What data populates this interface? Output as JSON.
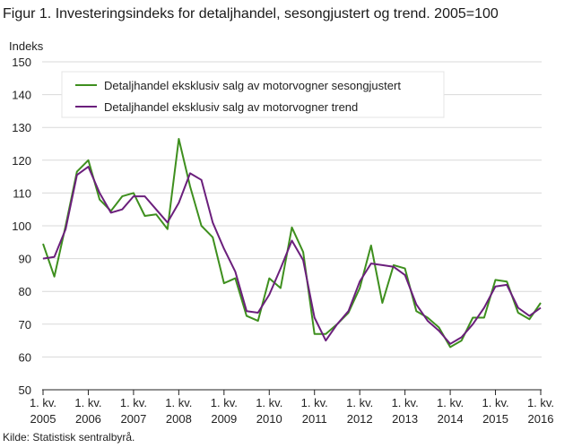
{
  "figure": {
    "title": "Figur 1. Investeringsindeks for detaljhandel, sesongjustert og trend. 2005=100",
    "ylabel": "Indeks",
    "source": "Kilde: Statistisk sentralbyrå."
  },
  "chart_data": {
    "type": "line",
    "title": "Figur 1. Investeringsindeks for detaljhandel, sesongjustert og trend. 2005=100",
    "ylabel": "Indeks",
    "xlabel": "",
    "ylim": [
      50,
      150
    ],
    "yticks": [
      50,
      60,
      70,
      80,
      90,
      100,
      110,
      120,
      130,
      140,
      150
    ],
    "grid": "horizontal",
    "legend": "top-left",
    "x_ticks": [
      {
        "line1": "1. kv.",
        "line2": "2005",
        "index": 0
      },
      {
        "line1": "1. kv.",
        "line2": "2006",
        "index": 4
      },
      {
        "line1": "1. kv.",
        "line2": "2007",
        "index": 8
      },
      {
        "line1": "1. kv.",
        "line2": "2008",
        "index": 12
      },
      {
        "line1": "1. kv.",
        "line2": "2009",
        "index": 16
      },
      {
        "line1": "1. kv.",
        "line2": "2010",
        "index": 20
      },
      {
        "line1": "1. kv.",
        "line2": "2011",
        "index": 24
      },
      {
        "line1": "1. kv.",
        "line2": "2012",
        "index": 28
      },
      {
        "line1": "1. kv.",
        "line2": "2013",
        "index": 32
      },
      {
        "line1": "1. kv.",
        "line2": "2014",
        "index": 36
      },
      {
        "line1": "1. kv.",
        "line2": "2015",
        "index": 40
      },
      {
        "line1": "1. kv.",
        "line2": "2016",
        "index": 44
      }
    ],
    "series": [
      {
        "name": "Detaljhandel eksklusiv salg av motorvogner sesongjustert",
        "color": "#3e8f1e",
        "values": [
          94.5,
          84.5,
          100,
          116.5,
          120,
          108,
          104.5,
          109,
          110,
          103,
          103.5,
          99,
          126.5,
          112,
          100,
          96.5,
          82.5,
          84,
          72.5,
          71,
          84,
          81,
          99.5,
          92,
          67,
          67,
          70,
          73.5,
          81,
          94,
          76.5,
          88,
          87,
          74,
          72,
          69,
          63,
          65,
          72,
          72,
          83.5,
          83,
          73.5,
          71.5,
          76.5
        ]
      },
      {
        "name": "Detaljhandel eksklusiv salg av motorvogner trend",
        "color": "#6b1f7c",
        "values": [
          90,
          90.5,
          99,
          115.5,
          118,
          110,
          104,
          105,
          109,
          109,
          105,
          101,
          107,
          116,
          114,
          101,
          93,
          86,
          74,
          73.5,
          79,
          87,
          95.5,
          89.5,
          72,
          65,
          70,
          74,
          83,
          88.5,
          88,
          87.5,
          85,
          76,
          71,
          68,
          64,
          66,
          70,
          75,
          81.5,
          82,
          75,
          72.5,
          75
        ]
      }
    ]
  }
}
